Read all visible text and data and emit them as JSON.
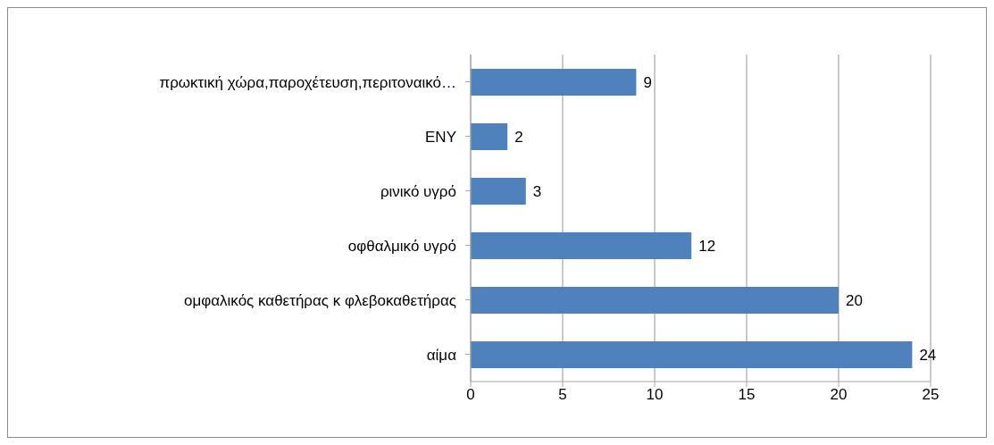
{
  "chart_data": {
    "type": "bar",
    "orientation": "horizontal",
    "categories": [
      "πρωκτική χώρα,παροχέτευση,περιτοναικό…",
      "ΕΝΥ",
      "ρινικό υγρό",
      "οφθαλμικό υγρό",
      "ομφαλικός καθετήρας κ φλεβοκαθετήρας",
      "αίμα"
    ],
    "values": [
      9,
      2,
      3,
      12,
      20,
      24
    ],
    "color": "#4f81bd",
    "xlim": [
      0,
      25
    ],
    "xticks": [
      0,
      5,
      10,
      15,
      20,
      25
    ],
    "grid": "x",
    "data_labels": true
  }
}
